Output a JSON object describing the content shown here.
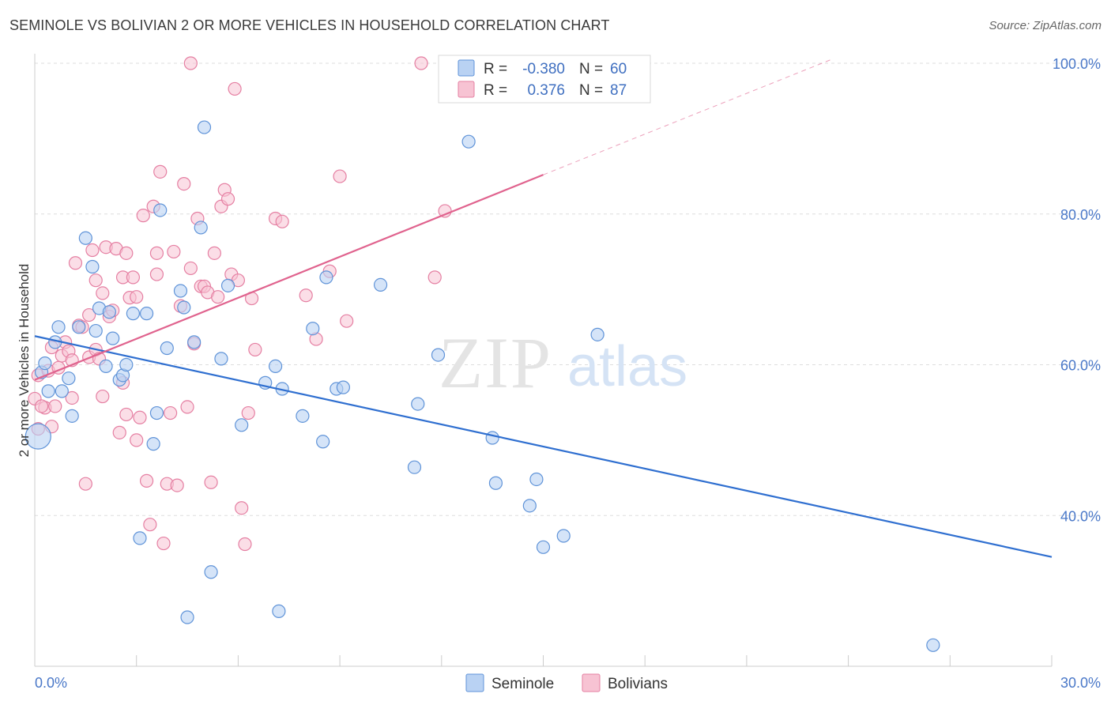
{
  "title": "SEMINOLE VS BOLIVIAN 2 OR MORE VEHICLES IN HOUSEHOLD CORRELATION CHART",
  "source": "Source: ZipAtlas.com",
  "watermark": {
    "zip": "ZIP",
    "atlas": "atlas"
  },
  "colors": {
    "seminole_fill": "#b9d2f3",
    "seminole_stroke": "#5f93d8",
    "seminole_line": "#2f6fd0",
    "bolivian_fill": "#f7c3d3",
    "bolivian_stroke": "#e57fa2",
    "bolivian_line": "#e0638e",
    "tick_label": "#4a78c8",
    "grid": "#dddddd"
  },
  "legend": {
    "rows": [
      {
        "r_label": "R =",
        "r_value": "-0.380",
        "n_label": "N =",
        "n_value": "60"
      },
      {
        "r_label": "R =",
        "r_value": "0.376",
        "n_label": "N =",
        "n_value": "87"
      }
    ]
  },
  "bottom_legend": [
    "Seminole",
    "Bolivians"
  ],
  "chart_data": {
    "type": "scatter",
    "title": "SEMINOLE VS BOLIVIAN 2 OR MORE VEHICLES IN HOUSEHOLD CORRELATION CHART",
    "xlabel": "",
    "ylabel": "2 or more Vehicles in Household",
    "xlim": [
      0,
      30
    ],
    "ylim": [
      20,
      100
    ],
    "x_tick_labels": [
      "0.0%",
      "30.0%"
    ],
    "y_ticks": [
      40,
      60,
      80,
      100
    ],
    "y_tick_labels": [
      "40.0%",
      "60.0%",
      "80.0%",
      "100.0%"
    ],
    "grid": true,
    "legend_position": "top-center",
    "series": [
      {
        "name": "Seminole",
        "R": -0.38,
        "N": 60,
        "trend": {
          "x": [
            0,
            30
          ],
          "y": [
            63.8,
            34.5
          ]
        },
        "points": [
          [
            0.1,
            50.5
          ],
          [
            0.2,
            59.0
          ],
          [
            0.3,
            60.2
          ],
          [
            0.4,
            56.5
          ],
          [
            0.6,
            63.0
          ],
          [
            0.7,
            65.0
          ],
          [
            0.8,
            56.5
          ],
          [
            1.0,
            58.2
          ],
          [
            1.1,
            53.2
          ],
          [
            1.3,
            65.0
          ],
          [
            1.5,
            76.8
          ],
          [
            1.7,
            73.0
          ],
          [
            1.8,
            64.5
          ],
          [
            1.9,
            67.5
          ],
          [
            2.1,
            59.8
          ],
          [
            2.2,
            67.0
          ],
          [
            2.3,
            63.5
          ],
          [
            2.5,
            58.0
          ],
          [
            2.6,
            58.6
          ],
          [
            2.7,
            60.0
          ],
          [
            2.9,
            66.8
          ],
          [
            3.1,
            37.0
          ],
          [
            3.3,
            66.8
          ],
          [
            3.5,
            49.5
          ],
          [
            3.6,
            53.6
          ],
          [
            3.7,
            80.5
          ],
          [
            3.9,
            62.2
          ],
          [
            4.3,
            69.8
          ],
          [
            4.4,
            67.6
          ],
          [
            4.5,
            26.5
          ],
          [
            4.7,
            63.0
          ],
          [
            4.9,
            78.2
          ],
          [
            5.0,
            91.5
          ],
          [
            5.2,
            32.5
          ],
          [
            5.5,
            60.8
          ],
          [
            5.7,
            70.5
          ],
          [
            6.1,
            52.0
          ],
          [
            6.8,
            57.6
          ],
          [
            7.1,
            59.8
          ],
          [
            7.2,
            27.3
          ],
          [
            7.3,
            56.8
          ],
          [
            7.9,
            53.2
          ],
          [
            8.2,
            64.8
          ],
          [
            8.5,
            49.8
          ],
          [
            8.6,
            71.6
          ],
          [
            8.9,
            56.8
          ],
          [
            9.1,
            57.0
          ],
          [
            10.2,
            70.6
          ],
          [
            11.2,
            46.4
          ],
          [
            11.3,
            54.8
          ],
          [
            11.9,
            61.3
          ],
          [
            12.8,
            89.6
          ],
          [
            13.5,
            50.3
          ],
          [
            13.6,
            44.3
          ],
          [
            14.6,
            41.3
          ],
          [
            14.8,
            44.8
          ],
          [
            15.0,
            35.8
          ],
          [
            15.6,
            37.3
          ],
          [
            16.6,
            64.0
          ],
          [
            26.5,
            22.8
          ]
        ]
      },
      {
        "name": "Bolivians",
        "R": 0.376,
        "N": 87,
        "trend": {
          "x": [
            0,
            15
          ],
          "y": [
            58.0,
            85.2
          ]
        },
        "trend_extension": {
          "x": [
            15,
            23.5
          ],
          "y": [
            85.2,
            100.5
          ]
        },
        "points": [
          [
            0.0,
            55.5
          ],
          [
            0.1,
            58.6
          ],
          [
            0.1,
            51.5
          ],
          [
            0.3,
            54.3
          ],
          [
            0.4,
            59.2
          ],
          [
            0.5,
            51.8
          ],
          [
            0.5,
            62.3
          ],
          [
            0.6,
            54.5
          ],
          [
            0.7,
            59.6
          ],
          [
            0.8,
            61.2
          ],
          [
            0.9,
            63.0
          ],
          [
            1.0,
            61.8
          ],
          [
            1.1,
            55.6
          ],
          [
            1.1,
            60.6
          ],
          [
            1.2,
            73.5
          ],
          [
            1.3,
            65.2
          ],
          [
            1.4,
            65.0
          ],
          [
            1.5,
            44.2
          ],
          [
            1.6,
            61.0
          ],
          [
            1.6,
            66.6
          ],
          [
            1.7,
            75.2
          ],
          [
            1.8,
            62.0
          ],
          [
            1.8,
            71.2
          ],
          [
            1.9,
            60.8
          ],
          [
            2.0,
            69.5
          ],
          [
            2.0,
            55.8
          ],
          [
            2.1,
            75.6
          ],
          [
            2.2,
            66.4
          ],
          [
            2.3,
            67.2
          ],
          [
            2.4,
            75.4
          ],
          [
            2.5,
            51.0
          ],
          [
            2.6,
            57.6
          ],
          [
            2.6,
            71.6
          ],
          [
            2.7,
            53.4
          ],
          [
            2.7,
            74.8
          ],
          [
            2.8,
            68.9
          ],
          [
            2.9,
            71.6
          ],
          [
            3.0,
            69.0
          ],
          [
            3.0,
            50.0
          ],
          [
            3.1,
            53.0
          ],
          [
            3.2,
            79.8
          ],
          [
            3.3,
            44.6
          ],
          [
            3.4,
            38.8
          ],
          [
            3.5,
            81.0
          ],
          [
            3.6,
            74.8
          ],
          [
            3.6,
            72.0
          ],
          [
            3.7,
            85.6
          ],
          [
            3.8,
            36.3
          ],
          [
            3.9,
            44.2
          ],
          [
            4.0,
            53.6
          ],
          [
            4.1,
            75.0
          ],
          [
            4.2,
            44.0
          ],
          [
            4.3,
            67.8
          ],
          [
            4.4,
            84.0
          ],
          [
            4.5,
            54.4
          ],
          [
            4.6,
            72.8
          ],
          [
            4.7,
            62.8
          ],
          [
            4.8,
            79.4
          ],
          [
            4.9,
            70.4
          ],
          [
            5.0,
            70.4
          ],
          [
            5.1,
            69.6
          ],
          [
            5.2,
            44.4
          ],
          [
            5.3,
            74.8
          ],
          [
            5.4,
            69.0
          ],
          [
            5.5,
            81.0
          ],
          [
            5.6,
            83.2
          ],
          [
            5.7,
            82.0
          ],
          [
            5.8,
            72.0
          ],
          [
            5.9,
            96.6
          ],
          [
            6.0,
            71.2
          ],
          [
            6.1,
            41.0
          ],
          [
            6.2,
            36.2
          ],
          [
            6.3,
            53.6
          ],
          [
            6.4,
            68.8
          ],
          [
            6.5,
            62.0
          ],
          [
            7.1,
            79.4
          ],
          [
            7.3,
            79.0
          ],
          [
            8.0,
            69.2
          ],
          [
            8.3,
            63.4
          ],
          [
            8.7,
            72.4
          ],
          [
            9.0,
            85.0
          ],
          [
            9.2,
            65.8
          ],
          [
            11.4,
            100.0
          ],
          [
            11.8,
            71.6
          ],
          [
            12.1,
            80.4
          ],
          [
            4.6,
            100.0
          ],
          [
            0.2,
            54.5
          ]
        ]
      }
    ]
  }
}
